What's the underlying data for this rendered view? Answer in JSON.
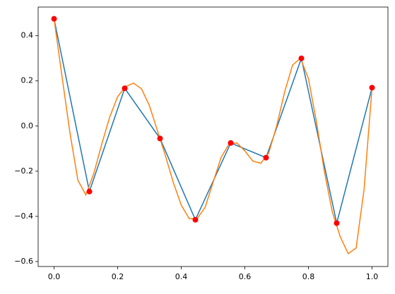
{
  "chart_data": {
    "type": "line",
    "xlim": [
      -0.05,
      1.05
    ],
    "ylim": [
      -0.622,
      0.527
    ],
    "xticks": [
      {
        "value": 0,
        "label": "0.0"
      },
      {
        "value": 0.2,
        "label": "0.2"
      },
      {
        "value": 0.4,
        "label": "0.4"
      },
      {
        "value": 0.6,
        "label": "0.6"
      },
      {
        "value": 0.8,
        "label": "0.8"
      },
      {
        "value": 1,
        "label": "1.0"
      }
    ],
    "yticks": [
      {
        "value": -0.6,
        "label": "−0.6"
      },
      {
        "value": -0.4,
        "label": "−0.4"
      },
      {
        "value": -0.2,
        "label": "−0.2"
      },
      {
        "value": 0,
        "label": "0.0"
      },
      {
        "value": 0.2,
        "label": "0.2"
      },
      {
        "value": 0.4,
        "label": "0.4"
      }
    ],
    "series": [
      {
        "type": "line",
        "color": "#1f77b4",
        "x": [
          0,
          0.1111,
          0.2222,
          0.3333,
          0.4444,
          0.5556,
          0.6667,
          0.7778,
          0.8889,
          1
        ],
        "values": [
          0.475,
          -0.29,
          0.167,
          -0.055,
          -0.415,
          -0.075,
          -0.14,
          0.3,
          -0.43,
          0.17
        ]
      },
      {
        "type": "line",
        "color": "#ff7f0e",
        "x": [
          0,
          0.025,
          0.05,
          0.075,
          0.1,
          0.125,
          0.15,
          0.175,
          0.2,
          0.225,
          0.25,
          0.275,
          0.3,
          0.325,
          0.35,
          0.375,
          0.4,
          0.425,
          0.45,
          0.475,
          0.5,
          0.525,
          0.55,
          0.575,
          0.6,
          0.625,
          0.65,
          0.675,
          0.7,
          0.725,
          0.75,
          0.775,
          0.8,
          0.825,
          0.85,
          0.875,
          0.9,
          0.925,
          0.95,
          0.975,
          1
        ],
        "values": [
          0.475,
          0.22,
          -0.03,
          -0.24,
          -0.305,
          -0.21,
          -0.08,
          0.04,
          0.13,
          0.175,
          0.19,
          0.165,
          0.09,
          -0.02,
          -0.13,
          -0.25,
          -0.35,
          -0.41,
          -0.41,
          -0.36,
          -0.25,
          -0.14,
          -0.08,
          -0.075,
          -0.11,
          -0.155,
          -0.165,
          -0.12,
          0.0,
          0.15,
          0.27,
          0.3,
          0.21,
          0.02,
          -0.2,
          -0.38,
          -0.49,
          -0.565,
          -0.54,
          -0.28,
          0.17
        ]
      },
      {
        "type": "scatter",
        "color": "#ff0000",
        "x": [
          0,
          0.1111,
          0.2222,
          0.3333,
          0.4444,
          0.5556,
          0.6667,
          0.7778,
          0.8889,
          1
        ],
        "values": [
          0.475,
          -0.29,
          0.167,
          -0.055,
          -0.415,
          -0.075,
          -0.14,
          0.3,
          -0.43,
          0.17
        ]
      }
    ]
  }
}
